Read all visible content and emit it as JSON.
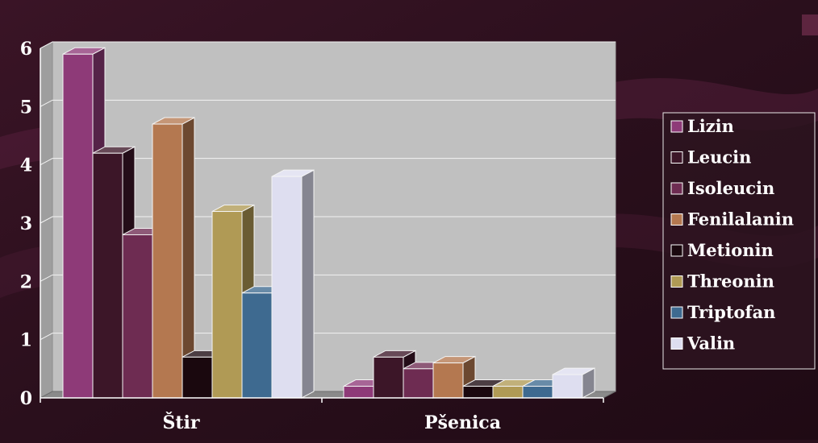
{
  "colors": {
    "background": "#2a0f1c",
    "plot_wall": "#c0c0c0",
    "floor": "#8a8a8a",
    "axis_text": "#ffffff",
    "legend_bg": "#2d1420",
    "legend_border": "#e8e8e8"
  },
  "chart_data": {
    "type": "bar",
    "style": "3d-clustered-column",
    "categories": [
      "Štir",
      "Pšenica"
    ],
    "series": [
      {
        "name": "Lizin",
        "color": "#8e3a78",
        "values": [
          5.9,
          0.2
        ]
      },
      {
        "name": "Leucin",
        "color": "#3c1628",
        "values": [
          4.2,
          0.7
        ]
      },
      {
        "name": "Isoleucin",
        "color": "#6e2c52",
        "values": [
          2.8,
          0.5
        ]
      },
      {
        "name": "Fenilalanin",
        "color": "#b47850",
        "values": [
          4.7,
          0.6
        ]
      },
      {
        "name": "Metionin",
        "color": "#1a080e",
        "values": [
          0.7,
          0.2
        ]
      },
      {
        "name": "Threonin",
        "color": "#b09a55",
        "values": [
          3.2,
          0.2
        ]
      },
      {
        "name": "Triptofan",
        "color": "#3e6a90",
        "values": [
          1.8,
          0.2
        ]
      },
      {
        "name": "Valin",
        "color": "#dedef0",
        "values": [
          3.8,
          0.4
        ]
      }
    ],
    "yticks": [
      0,
      1,
      2,
      3,
      4,
      5,
      6
    ],
    "ylim": [
      0,
      6
    ],
    "grid": true,
    "legend": "right"
  }
}
